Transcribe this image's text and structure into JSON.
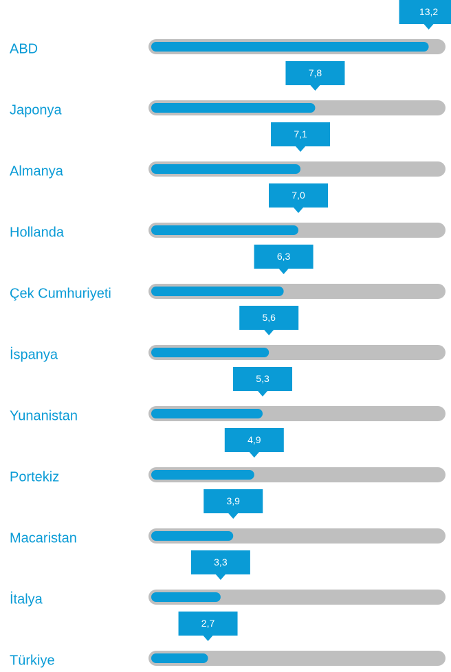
{
  "chart_data": {
    "type": "bar",
    "orientation": "horizontal",
    "categories": [
      "ABD",
      "Japonya",
      "Almanya",
      "Hollanda",
      "Çek Cumhuriyeti",
      "İspanya",
      "Yunanistan",
      "Portekiz",
      "Macaristan",
      "İtalya",
      "Türkiye"
    ],
    "values": [
      13.2,
      7.8,
      7.1,
      7.0,
      6.3,
      5.6,
      5.3,
      4.9,
      3.9,
      3.3,
      2.7
    ],
    "value_labels": [
      "13,2",
      "7,8",
      "7,1",
      "7,0",
      "6,3",
      "5,6",
      "5,3",
      "4,9",
      "3,9",
      "3,3",
      "2,7"
    ],
    "color": "#0a9bd6",
    "track_color": "#bfbfbf",
    "xlim": [
      0,
      14
    ]
  }
}
